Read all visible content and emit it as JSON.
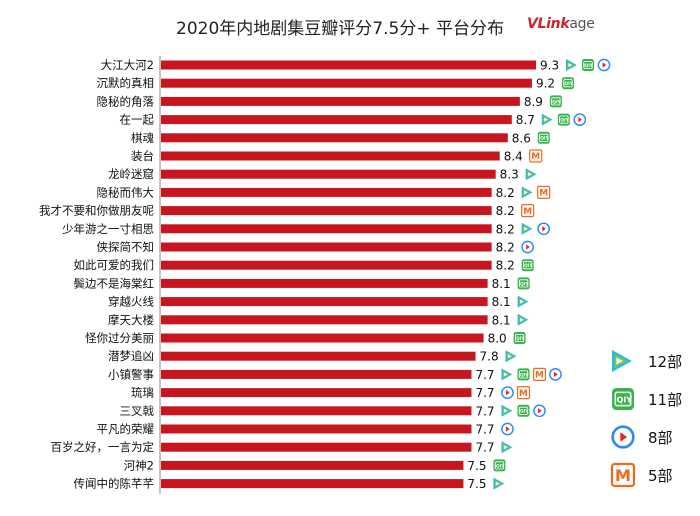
{
  "title": "2020年内地剧集豆瓣评分7.5分+ 平台分布",
  "brand": {
    "v": "V",
    "rest": "Link",
    "suffix": "age"
  },
  "colors": {
    "bar": "#c8161e",
    "youku": "#1aa3e8",
    "iqiyi": "#37b54a",
    "tencent": "#2a8cf0",
    "mango": "#f26a1b"
  },
  "platforms": {
    "tencent": {
      "label": "12部",
      "icon": "tencent-video-icon",
      "glyph": "▶"
    },
    "iqiyi": {
      "label": "11部",
      "icon": "iqiyi-icon",
      "glyph": "iQIY"
    },
    "youku": {
      "label": "8部",
      "icon": "youku-icon",
      "glyph": "▶"
    },
    "mango": {
      "label": "5部",
      "icon": "mango-tv-icon",
      "glyph": "M"
    }
  },
  "chart_data": {
    "type": "bar",
    "orientation": "horizontal",
    "title": "2020年内地剧集豆瓣评分7.5分+ 平台分布",
    "categories": [
      "大江大河2",
      "沉默的真相",
      "隐秘的角落",
      "在一起",
      "棋魂",
      "装台",
      "龙岭迷窟",
      "隐秘而伟大",
      "我才不要和你做朋友呢",
      "少年游之一寸相思",
      "侠探简不知",
      "如此可爱的我们",
      "鬓边不是海棠红",
      "穿越火线",
      "摩天大楼",
      "怪你过分美丽",
      "潜梦追凶",
      "小镇警事",
      "琉璃",
      "三叉戟",
      "平凡的荣耀",
      "百岁之好，一言为定",
      "河神2",
      "传闻中的陈芊芊"
    ],
    "values": [
      9.3,
      9.2,
      8.9,
      8.7,
      8.6,
      8.4,
      8.3,
      8.2,
      8.2,
      8.2,
      8.2,
      8.2,
      8.1,
      8.1,
      8.1,
      8.0,
      7.8,
      7.7,
      7.7,
      7.7,
      7.7,
      7.7,
      7.5,
      7.5
    ],
    "value_labels": [
      "9.3",
      "9.2",
      "8.9",
      "8.7",
      "8.6",
      "8.4",
      "8.3",
      "8.2",
      "8.2",
      "8.2",
      "8.2",
      "8.2",
      "8.1",
      "8.1",
      "8.1",
      "8.0",
      "7.8",
      "7.7",
      "7.7",
      "7.7",
      "7.7",
      "7.7",
      "7.5",
      "7.5"
    ],
    "platforms": [
      [
        "tencent",
        "iqiyi",
        "youku"
      ],
      [
        "iqiyi"
      ],
      [
        "iqiyi"
      ],
      [
        "tencent",
        "iqiyi",
        "youku"
      ],
      [
        "iqiyi"
      ],
      [
        "mango"
      ],
      [
        "tencent"
      ],
      [
        "tencent",
        "mango"
      ],
      [
        "mango"
      ],
      [
        "tencent",
        "youku"
      ],
      [
        "youku"
      ],
      [
        "iqiyi"
      ],
      [
        "iqiyi"
      ],
      [
        "tencent"
      ],
      [
        "tencent"
      ],
      [
        "iqiyi"
      ],
      [
        "tencent"
      ],
      [
        "tencent",
        "iqiyi",
        "mango",
        "youku"
      ],
      [
        "youku",
        "mango"
      ],
      [
        "tencent",
        "iqiyi",
        "youku"
      ],
      [
        "youku"
      ],
      [
        "tencent"
      ],
      [
        "iqiyi"
      ],
      [
        "tencent"
      ]
    ],
    "legend": {
      "position": "right",
      "order": [
        "tencent",
        "iqiyi",
        "youku",
        "mango"
      ]
    },
    "grid": false
  }
}
